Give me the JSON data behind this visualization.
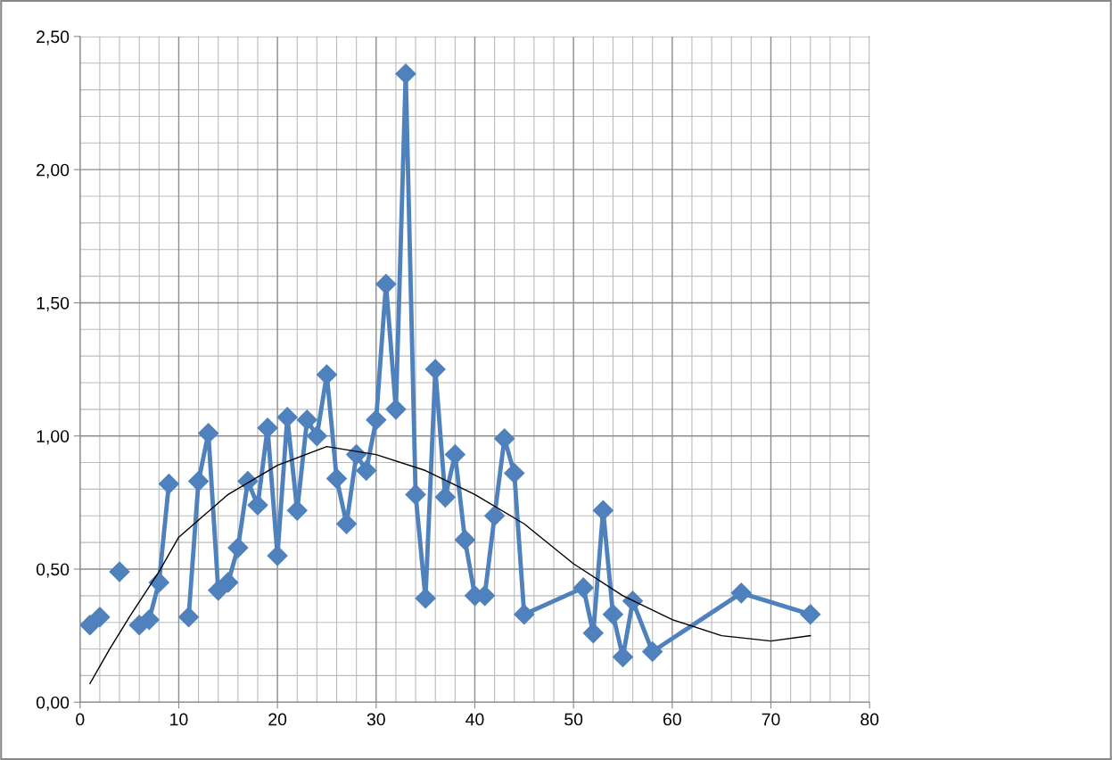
{
  "chart_data": {
    "type": "line",
    "x": [
      1,
      2,
      3,
      4,
      5,
      6,
      7,
      8,
      9,
      10,
      11,
      12,
      13,
      14,
      15,
      16,
      17,
      18,
      19,
      20,
      21,
      22,
      23,
      24,
      25,
      26,
      27,
      28,
      29,
      30,
      31,
      32,
      33,
      34,
      35,
      36,
      37,
      38,
      39,
      40,
      41,
      42,
      43,
      44,
      45,
      51,
      52,
      53,
      54,
      55,
      56,
      58,
      67,
      74
    ],
    "series": [
      {
        "color": "#4f81bd",
        "marker": "diamond",
        "line_style": "solid",
        "values": [
          0.29,
          0.32,
          null,
          0.49,
          null,
          0.29,
          0.31,
          0.45,
          0.82,
          null,
          0.32,
          0.83,
          1.01,
          0.42,
          0.45,
          0.58,
          0.83,
          0.74,
          1.03,
          0.55,
          1.07,
          0.72,
          1.06,
          1.0,
          1.23,
          0.84,
          0.67,
          0.93,
          0.87,
          1.06,
          1.57,
          1.1,
          2.36,
          0.78,
          0.39,
          1.25,
          0.77,
          0.93,
          0.61,
          0.4,
          0.4,
          0.7,
          0.99,
          0.86,
          0.33,
          0.43,
          0.26,
          0.72,
          0.33,
          0.17,
          0.38,
          0.19,
          0.41,
          0.33
        ]
      },
      {
        "type": "line",
        "color": "#000000",
        "marker": "none",
        "line_style": "solid",
        "x": [
          1,
          3,
          5,
          8,
          10,
          15,
          20,
          25,
          30,
          35,
          40,
          45,
          50,
          55,
          60,
          65,
          70,
          74
        ],
        "values": [
          0.07,
          0.2,
          0.32,
          0.49,
          0.62,
          0.78,
          0.89,
          0.96,
          0.93,
          0.87,
          0.78,
          0.67,
          0.52,
          0.4,
          0.31,
          0.25,
          0.23,
          0.25
        ]
      }
    ],
    "xlim": [
      0,
      80
    ],
    "xticks": [
      0,
      10,
      20,
      30,
      40,
      50,
      60,
      70,
      80
    ],
    "ylim": [
      0,
      2.5
    ],
    "yticks": [
      {
        "value": 0,
        "label": "0,00"
      },
      {
        "value": 0.5,
        "label": "0,50"
      },
      {
        "value": 1.0,
        "label": "1,00"
      },
      {
        "value": 1.5,
        "label": "1,50"
      },
      {
        "value": 2.0,
        "label": "2,00"
      },
      {
        "value": 2.5,
        "label": "2,50"
      }
    ],
    "grid": true,
    "legend": false
  }
}
